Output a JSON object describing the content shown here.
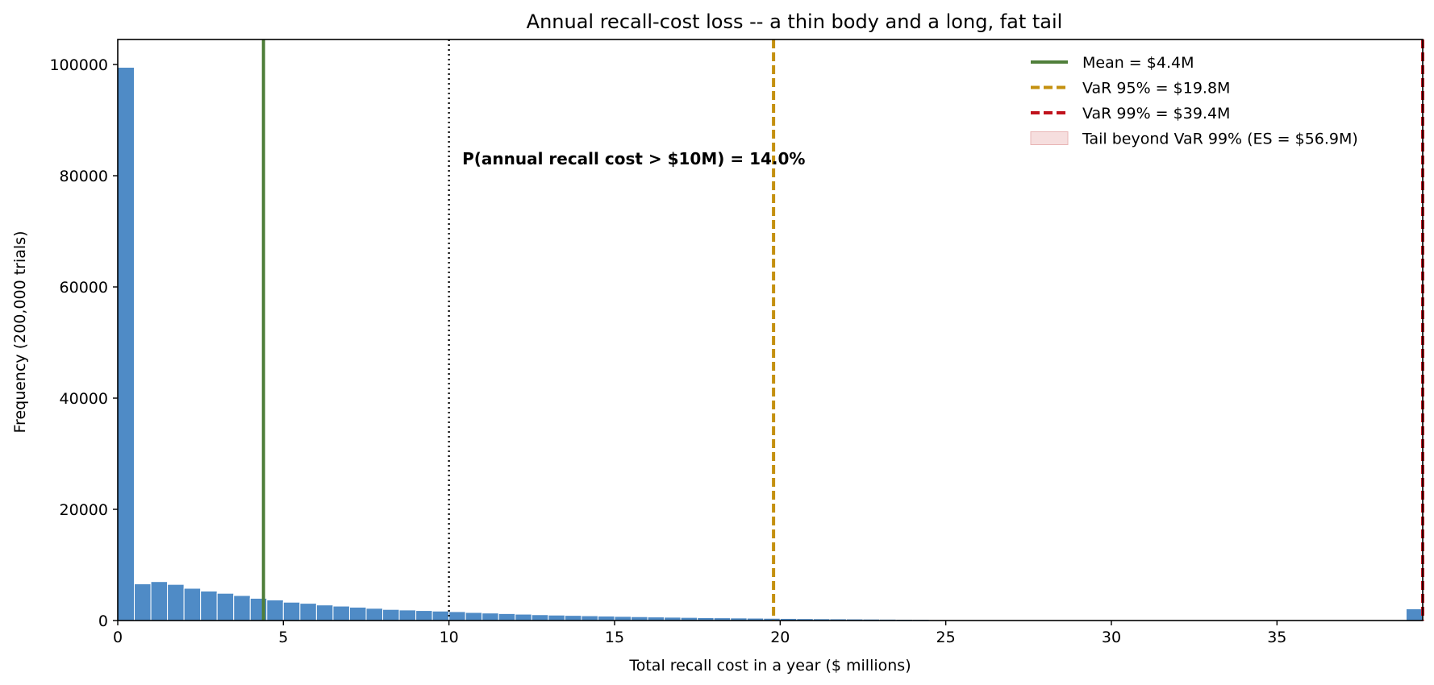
{
  "chart_data": {
    "type": "bar",
    "title": "Annual recall-cost loss -- a thin body and a long, fat tail",
    "xlabel": "Total recall cost in a year  ($ millions)",
    "ylabel": "Frequency  (200,000 trials)",
    "xlim": [
      0,
      39.4
    ],
    "ylim": [
      0,
      104500
    ],
    "xticks": [
      0,
      5,
      10,
      15,
      20,
      25,
      30,
      35
    ],
    "yticks": [
      0,
      20000,
      40000,
      60000,
      80000,
      100000
    ],
    "bin_width": 0.5,
    "bin_starts": [
      0,
      0.5,
      1.0,
      1.5,
      2.0,
      2.5,
      3.0,
      3.5,
      4.0,
      4.5,
      5.0,
      5.5,
      6.0,
      6.5,
      7.0,
      7.5,
      8.0,
      8.5,
      9.0,
      9.5,
      10.0,
      10.5,
      11.0,
      11.5,
      12.0,
      12.5,
      13.0,
      13.5,
      14.0,
      14.5,
      15.0,
      15.5,
      16.0,
      16.5,
      17.0,
      17.5,
      18.0,
      18.5,
      19.0,
      19.5,
      20.0,
      20.5,
      21.0,
      21.5,
      22.0,
      22.5,
      23.0,
      23.5,
      24.0,
      38.9
    ],
    "values": [
      99500,
      6600,
      7000,
      6500,
      5800,
      5300,
      4900,
      4500,
      4000,
      3700,
      3300,
      3100,
      2800,
      2600,
      2400,
      2200,
      2000,
      1900,
      1800,
      1700,
      1600,
      1450,
      1350,
      1250,
      1150,
      1050,
      980,
      920,
      860,
      800,
      740,
      690,
      640,
      600,
      560,
      520,
      490,
      460,
      430,
      400,
      370,
      340,
      320,
      300,
      280,
      260,
      240,
      220,
      200,
      2100
    ],
    "bar_color": "#4f8bc6",
    "lines": [
      {
        "name": "Mean = $4.4M",
        "x": 4.4,
        "color": "#4f7f3a",
        "style": "solid",
        "in_legend": true
      },
      {
        "name": "VaR 95% = $19.8M",
        "x": 19.8,
        "color": "#c4900f",
        "style": "dashed",
        "in_legend": true
      },
      {
        "name": "VaR 99% = $39.4M",
        "x": 39.4,
        "color": "#c0121c",
        "style": "dashed",
        "in_legend": true
      },
      {
        "name": "",
        "x": 10.0,
        "color": "#000000",
        "style": "dotted",
        "in_legend": false
      }
    ],
    "tail_region": {
      "name": "Tail beyond VaR 99% (ES = $56.9M)",
      "color": "#f6dede",
      "x_from": 39.4
    },
    "annotation": {
      "text": "P(annual recall cost > $10M) = 14.0%",
      "x": 10.4,
      "y": 82000
    },
    "legend_placement": "top-right",
    "grid": false
  }
}
